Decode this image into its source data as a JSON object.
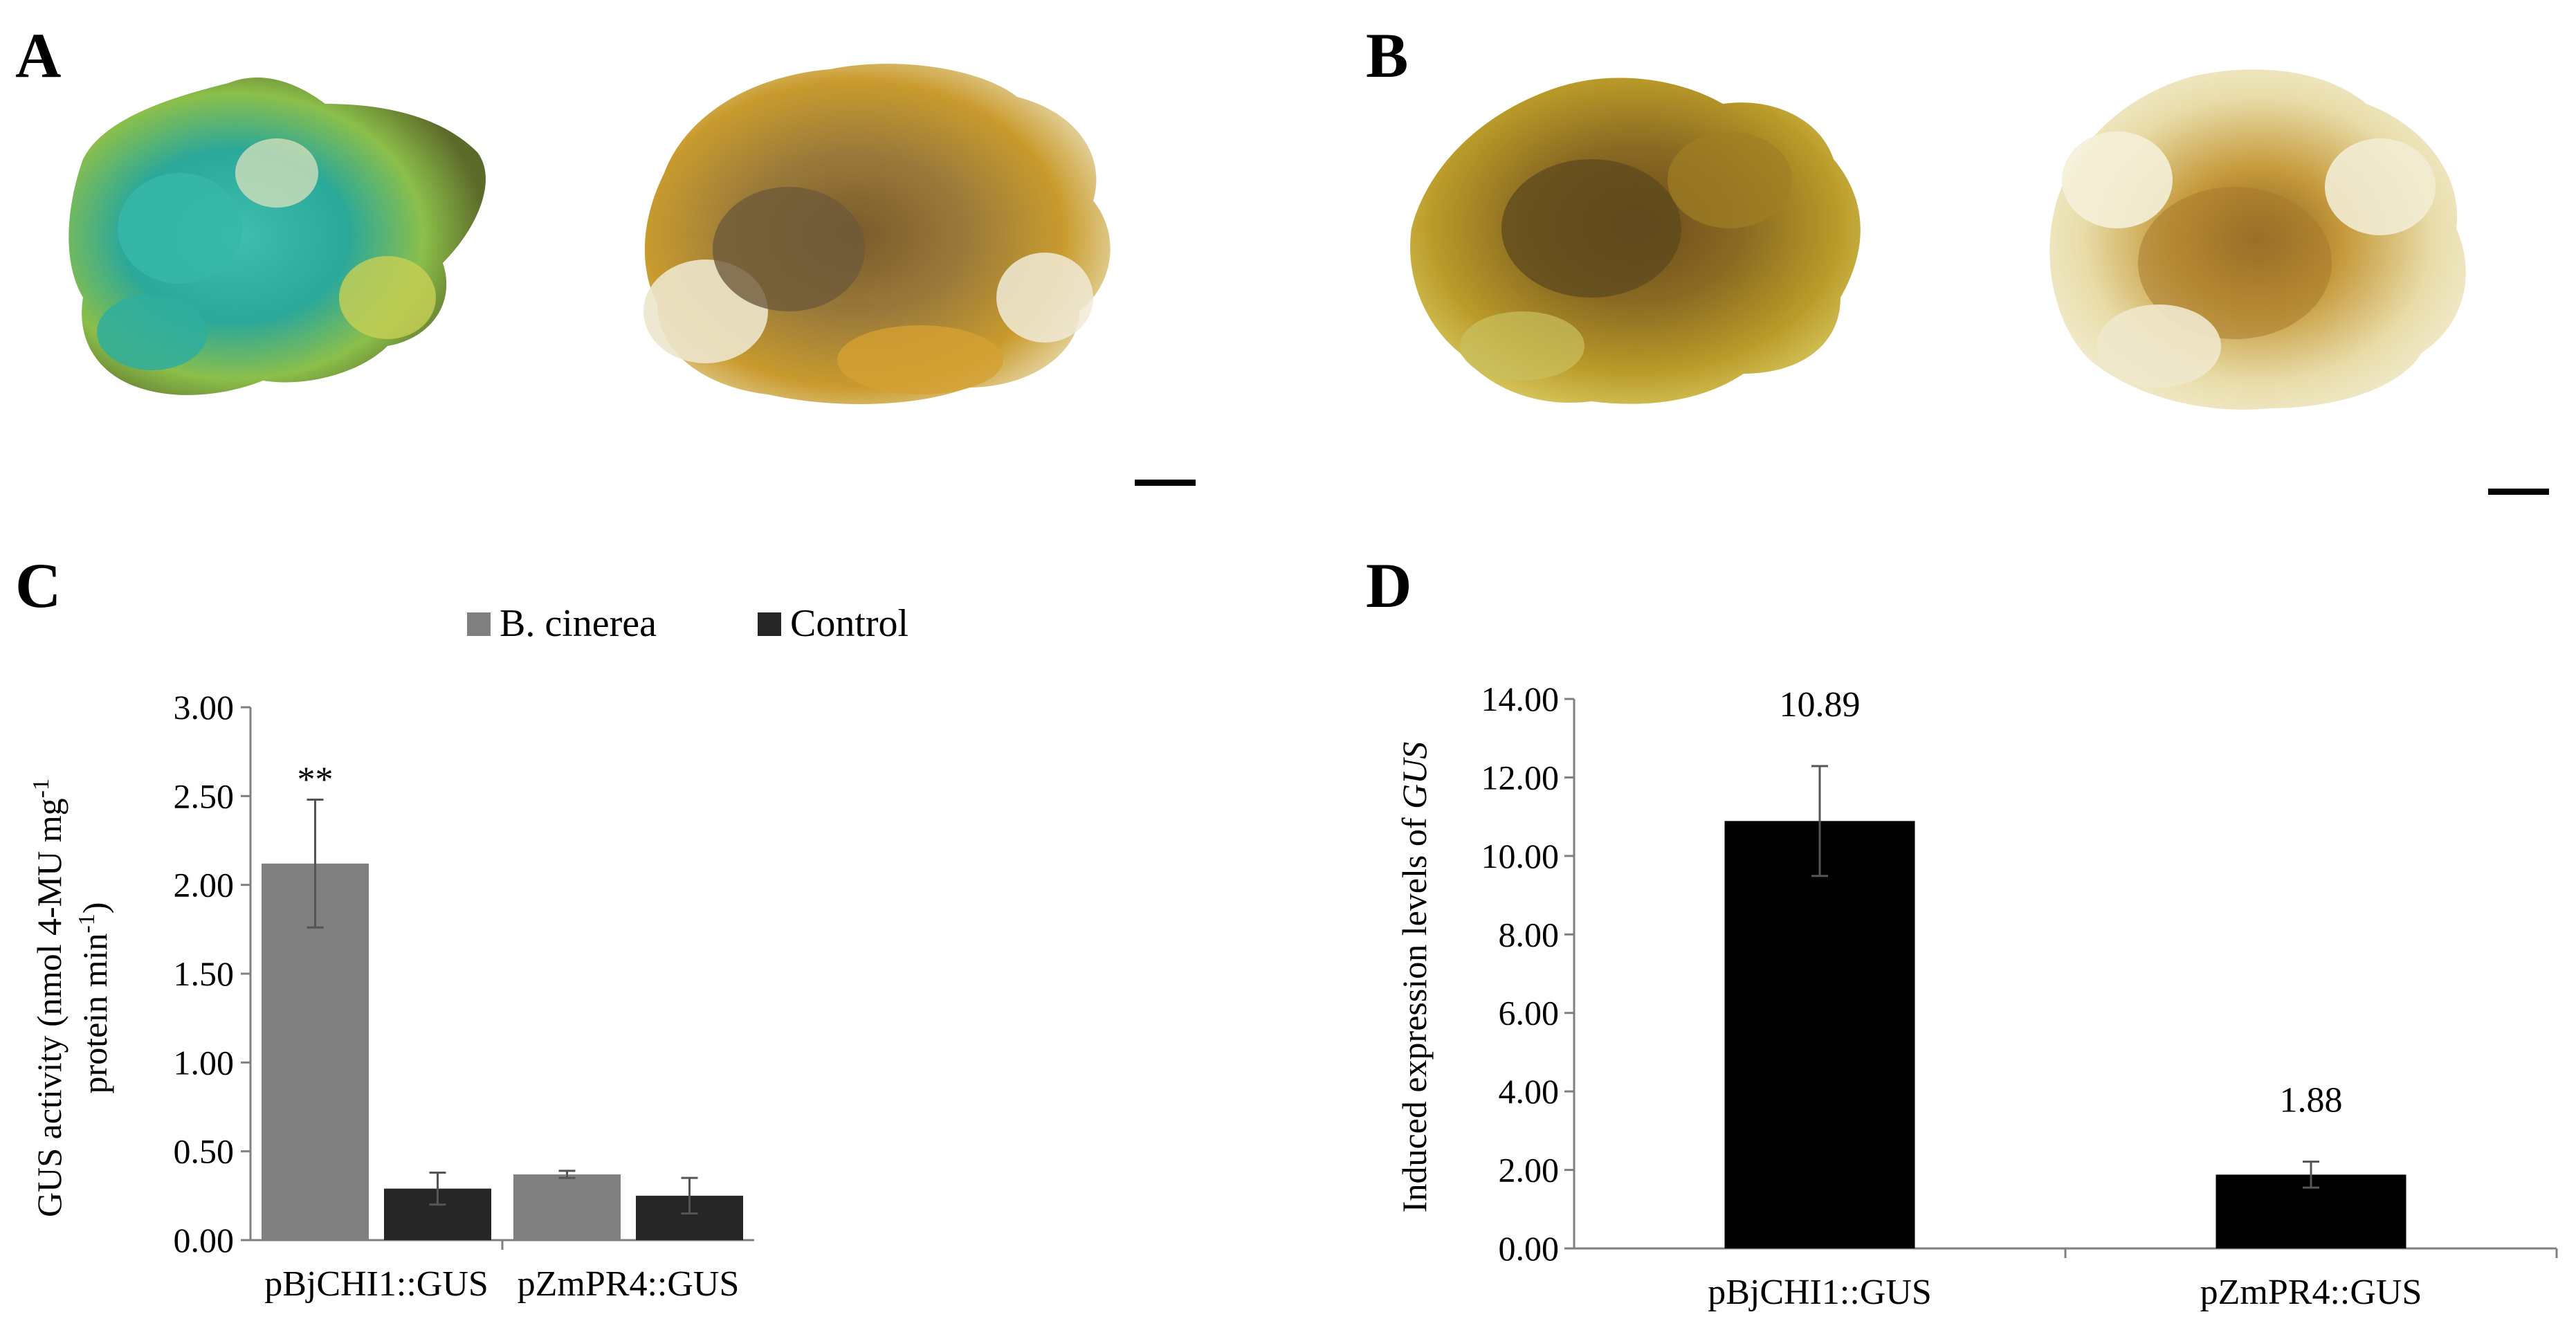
{
  "panels": {
    "a": "A",
    "b": "B",
    "c": "C",
    "d": "D"
  },
  "colors": {
    "bcinerea": "#808080",
    "control": "#262626",
    "expression": "#000000"
  },
  "chart_data": [
    {
      "type": "bar",
      "panel": "C",
      "categories": [
        "pBjCHI1::GUS",
        "pZmPR4::GUS"
      ],
      "series": [
        {
          "name": "B. cinerea",
          "values": [
            2.12,
            0.37
          ],
          "errors": [
            0.36,
            0.02
          ]
        },
        {
          "name": "Control",
          "values": [
            0.29,
            0.25
          ],
          "errors": [
            0.09,
            0.1
          ]
        }
      ],
      "ylabel_line1": "GUS activity (nmol 4-MU mg",
      "ylabel_sup1": "-1",
      "ylabel_line2": "protein min",
      "ylabel_sup2": "-1",
      "ylabel_close": ")",
      "ylim": [
        0,
        3
      ],
      "yticks": [
        "0.00",
        "0.50",
        "1.00",
        "1.50",
        "2.00",
        "2.50",
        "3.00"
      ],
      "annotations": [
        {
          "text": "**",
          "category": 0,
          "series": 0
        }
      ],
      "legend": "top"
    },
    {
      "type": "bar",
      "panel": "D",
      "categories": [
        "pBjCHI1::GUS",
        "pZmPR4::GUS"
      ],
      "series": [
        {
          "values": [
            10.89,
            1.88
          ],
          "errors": [
            1.4,
            0.33
          ]
        }
      ],
      "data_labels": [
        "10.89",
        "1.88"
      ],
      "ylabel": "Induced  expression levels of",
      "ylabel_italic": "GUS",
      "ylim": [
        0,
        14
      ],
      "yticks": [
        "0.00",
        "2.00",
        "4.00",
        "6.00",
        "8.00",
        "10.00",
        "12.00",
        "14.00"
      ]
    }
  ]
}
